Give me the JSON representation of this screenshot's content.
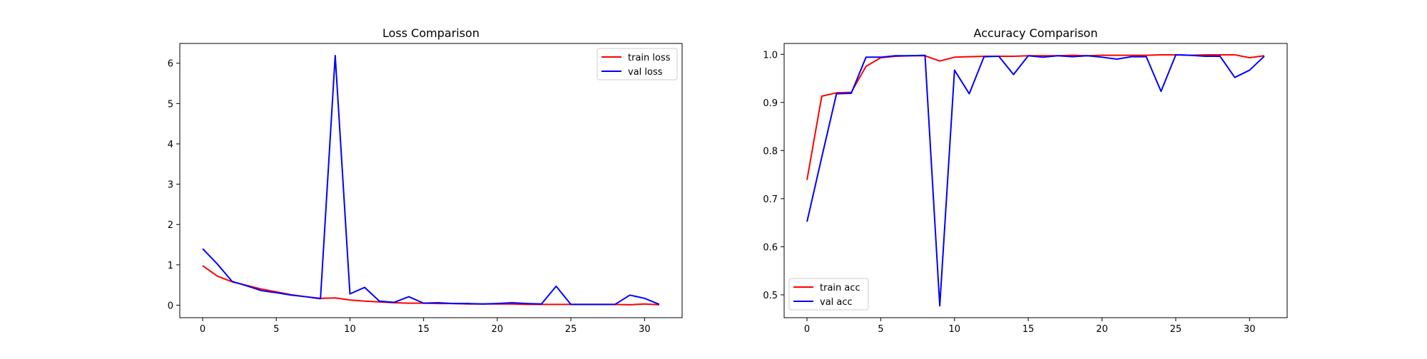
{
  "chart_data": [
    {
      "type": "line",
      "title": "Loss Comparison",
      "xlabel": "",
      "ylabel": "",
      "xlim": [
        -1.55,
        32.55
      ],
      "ylim": [
        -0.31,
        6.49
      ],
      "xticks": [
        0,
        5,
        10,
        15,
        20,
        25,
        30
      ],
      "yticks": [
        0,
        1,
        2,
        3,
        4,
        5,
        6
      ],
      "grid": false,
      "legend_position": "top-right",
      "x": [
        0,
        1,
        2,
        3,
        4,
        5,
        6,
        7,
        8,
        9,
        10,
        11,
        12,
        13,
        14,
        15,
        16,
        17,
        18,
        19,
        20,
        21,
        22,
        23,
        24,
        25,
        26,
        27,
        28,
        29,
        30,
        31
      ],
      "series": [
        {
          "name": "train loss",
          "color": "#ff0000",
          "values": [
            0.98,
            0.72,
            0.58,
            0.49,
            0.4,
            0.33,
            0.26,
            0.21,
            0.17,
            0.18,
            0.13,
            0.1,
            0.08,
            0.06,
            0.05,
            0.05,
            0.04,
            0.04,
            0.03,
            0.03,
            0.03,
            0.03,
            0.02,
            0.02,
            0.02,
            0.02,
            0.02,
            0.02,
            0.02,
            0.01,
            0.03,
            0.01
          ]
        },
        {
          "name": "val loss",
          "color": "#0000ff",
          "values": [
            1.4,
            1.02,
            0.59,
            0.48,
            0.36,
            0.31,
            0.25,
            0.21,
            0.16,
            6.19,
            0.28,
            0.44,
            0.1,
            0.07,
            0.21,
            0.05,
            0.06,
            0.04,
            0.04,
            0.03,
            0.04,
            0.06,
            0.04,
            0.03,
            0.47,
            0.02,
            0.02,
            0.02,
            0.02,
            0.25,
            0.17,
            0.02
          ]
        }
      ]
    },
    {
      "type": "line",
      "title": "Accuracy Comparison",
      "xlabel": "",
      "ylabel": "",
      "xlim": [
        -1.55,
        32.55
      ],
      "ylim": [
        0.4525,
        1.0226
      ],
      "xticks": [
        0,
        5,
        10,
        15,
        20,
        25,
        30
      ],
      "yticks": [
        "0.5",
        "0.6",
        "0.7",
        "0.8",
        "0.9",
        "1.0"
      ],
      "grid": false,
      "legend_position": "bottom-left",
      "x": [
        0,
        1,
        2,
        3,
        4,
        5,
        6,
        7,
        8,
        9,
        10,
        11,
        12,
        13,
        14,
        15,
        16,
        17,
        18,
        19,
        20,
        21,
        22,
        23,
        24,
        25,
        26,
        27,
        28,
        29,
        30,
        31
      ],
      "series": [
        {
          "name": "train acc",
          "color": "#ff0000",
          "values": [
            0.739,
            0.913,
            0.92,
            0.921,
            0.975,
            0.993,
            0.996,
            0.997,
            0.997,
            0.986,
            0.994,
            0.995,
            0.996,
            0.996,
            0.996,
            0.997,
            0.997,
            0.997,
            0.998,
            0.997,
            0.998,
            0.998,
            0.998,
            0.998,
            0.999,
            0.999,
            0.998,
            0.999,
            0.999,
            0.999,
            0.993,
            0.997
          ]
        },
        {
          "name": "val acc",
          "color": "#0000ff",
          "values": [
            0.652,
            0.786,
            0.918,
            0.919,
            0.994,
            0.994,
            0.997,
            0.997,
            0.998,
            0.477,
            0.967,
            0.918,
            0.995,
            0.996,
            0.958,
            0.997,
            0.994,
            0.997,
            0.995,
            0.997,
            0.994,
            0.99,
            0.995,
            0.995,
            0.923,
            0.999,
            0.998,
            0.996,
            0.996,
            0.952,
            0.967,
            0.996
          ]
        }
      ]
    }
  ]
}
